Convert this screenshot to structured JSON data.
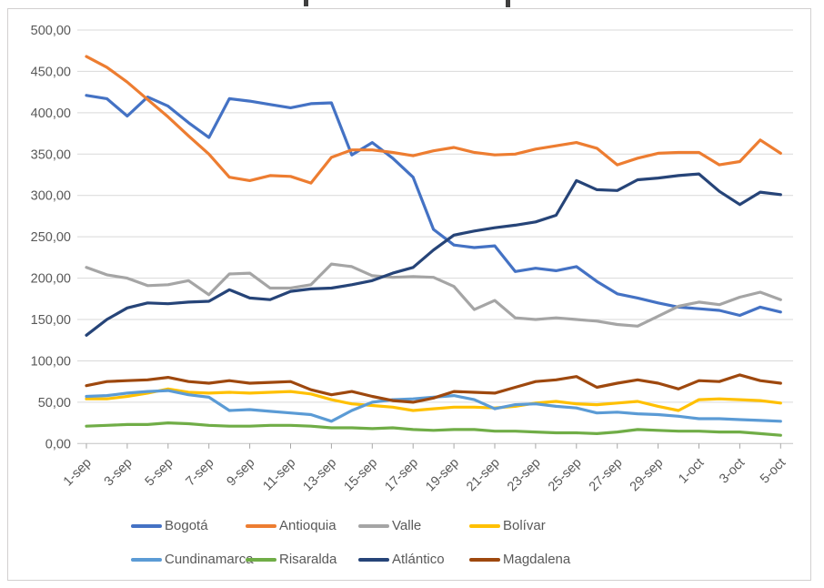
{
  "chart_data": {
    "type": "line",
    "title_cropped": true,
    "categories": [
      "1-sep",
      "2-sep",
      "3-sep",
      "4-sep",
      "5-sep",
      "6-sep",
      "7-sep",
      "8-sep",
      "9-sep",
      "10-sep",
      "11-sep",
      "12-sep",
      "13-sep",
      "14-sep",
      "15-sep",
      "16-sep",
      "17-sep",
      "18-sep",
      "19-sep",
      "20-sep",
      "21-sep",
      "22-sep",
      "23-sep",
      "24-sep",
      "25-sep",
      "26-sep",
      "27-sep",
      "28-sep",
      "29-sep",
      "30-sep",
      "1-oct",
      "2-oct",
      "3-oct",
      "4-oct",
      "5-oct"
    ],
    "x_tick_labels": [
      "1-sep",
      "3-sep",
      "5-sep",
      "7-sep",
      "9-sep",
      "11-sep",
      "13-sep",
      "15-sep",
      "17-sep",
      "19-sep",
      "21-sep",
      "23-sep",
      "25-sep",
      "27-sep",
      "29-sep",
      "1-oct",
      "3-oct",
      "5-oct"
    ],
    "ylim": [
      0,
      500
    ],
    "ytick_step": 50,
    "ytick_labels": [
      "0,00",
      "50,00",
      "100,00",
      "150,00",
      "200,00",
      "250,00",
      "300,00",
      "350,00",
      "400,00",
      "450,00",
      "500,00"
    ],
    "grid": true,
    "legend_position": "bottom",
    "series": [
      {
        "name": "Bogotá",
        "color": "#4472C4",
        "values": [
          421,
          417,
          396,
          419,
          408,
          388,
          370,
          417,
          414,
          410,
          406,
          411,
          412,
          349,
          364,
          345,
          322,
          259,
          240,
          237,
          239,
          208,
          212,
          209,
          214,
          196,
          181,
          176,
          170,
          165,
          163,
          161,
          155,
          165,
          159
        ]
      },
      {
        "name": "Antioquia",
        "color": "#ED7D31",
        "values": [
          468,
          455,
          437,
          416,
          395,
          372,
          350,
          322,
          318,
          324,
          323,
          315,
          346,
          355,
          355,
          352,
          348,
          354,
          358,
          352,
          349,
          350,
          356,
          360,
          364,
          357,
          337,
          345,
          351,
          352,
          352,
          337,
          341,
          367,
          351
        ]
      },
      {
        "name": "Valle",
        "color": "#A5A5A5",
        "values": [
          213,
          204,
          200,
          191,
          192,
          197,
          180,
          205,
          206,
          188,
          188,
          192,
          217,
          214,
          203,
          201,
          202,
          201,
          190,
          162,
          173,
          152,
          150,
          152,
          150,
          148,
          144,
          142,
          154,
          166,
          171,
          168,
          177,
          183,
          174
        ]
      },
      {
        "name": "Bolívar",
        "color": "#FFC000",
        "values": [
          54,
          54,
          57,
          61,
          66,
          62,
          61,
          62,
          61,
          62,
          63,
          60,
          53,
          48,
          46,
          44,
          40,
          42,
          44,
          44,
          43,
          45,
          49,
          51,
          48,
          47,
          49,
          51,
          45,
          40,
          53,
          54,
          53,
          52,
          49
        ]
      },
      {
        "name": "Cundinamarca",
        "color": "#5B9BD5",
        "values": [
          57,
          58,
          61,
          63,
          64,
          59,
          56,
          40,
          41,
          39,
          37,
          35,
          27,
          40,
          50,
          53,
          54,
          56,
          58,
          53,
          42,
          47,
          48,
          45,
          43,
          37,
          38,
          36,
          35,
          33,
          30,
          30,
          29,
          28,
          27
        ]
      },
      {
        "name": "Risaralda",
        "color": "#70AD47",
        "values": [
          21,
          22,
          23,
          23,
          25,
          24,
          22,
          21,
          21,
          22,
          22,
          21,
          19,
          19,
          18,
          19,
          17,
          16,
          17,
          17,
          15,
          15,
          14,
          13,
          13,
          12,
          14,
          17,
          16,
          15,
          15,
          14,
          14,
          12,
          10
        ]
      },
      {
        "name": "Atlántico",
        "color": "#264478",
        "values": [
          131,
          150,
          164,
          170,
          169,
          171,
          172,
          186,
          176,
          174,
          184,
          187,
          188,
          192,
          197,
          206,
          213,
          234,
          252,
          257,
          261,
          264,
          268,
          276,
          318,
          307,
          306,
          319,
          321,
          324,
          326,
          305,
          289,
          304,
          301
        ]
      },
      {
        "name": "Magdalena",
        "color": "#9E480E",
        "values": [
          70,
          75,
          76,
          77,
          80,
          75,
          73,
          76,
          73,
          74,
          75,
          65,
          59,
          63,
          57,
          52,
          50,
          55,
          63,
          62,
          61,
          68,
          75,
          77,
          81,
          68,
          73,
          77,
          73,
          66,
          76,
          75,
          83,
          76,
          73
        ]
      }
    ]
  }
}
